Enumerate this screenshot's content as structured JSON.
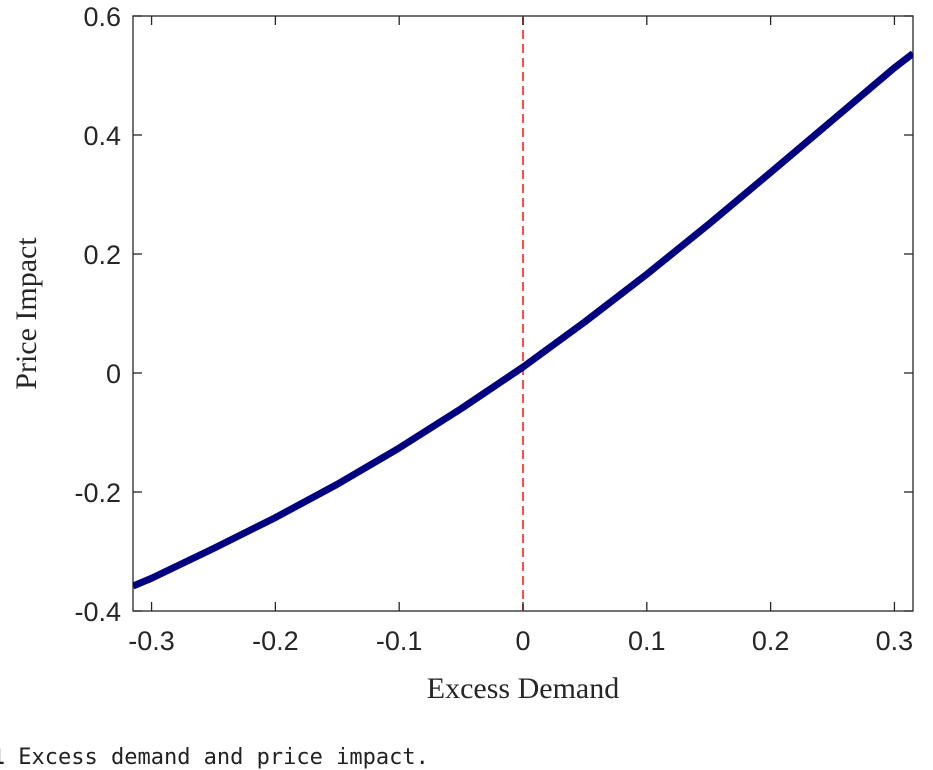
{
  "chart_data": {
    "type": "line",
    "xlabel": "Excess Demand",
    "ylabel": "Price Impact",
    "xlim": [
      -0.315,
      0.315
    ],
    "ylim": [
      -0.4,
      0.6
    ],
    "xticks": [
      -0.3,
      -0.2,
      -0.1,
      0,
      0.1,
      0.2,
      0.3
    ],
    "xtick_labels": [
      "-0.3",
      "-0.2",
      "-0.1",
      "0",
      "0.1",
      "0.2",
      "0.3"
    ],
    "yticks": [
      -0.4,
      -0.2,
      0,
      0.2,
      0.4,
      0.6
    ],
    "ytick_labels": [
      "-0.4",
      "-0.2",
      "0",
      "0.2",
      "0.4",
      "0.6"
    ],
    "grid": false,
    "series": [
      {
        "color": "#000080",
        "x": [
          -0.315,
          -0.3,
          -0.25,
          -0.2,
          -0.15,
          -0.1,
          -0.05,
          0,
          0.05,
          0.1,
          0.15,
          0.2,
          0.25,
          0.3,
          0.315
        ],
        "y": [
          -0.358,
          -0.345,
          -0.295,
          -0.243,
          -0.187,
          -0.126,
          -0.06,
          0.01,
          0.086,
          0.166,
          0.25,
          0.337,
          0.425,
          0.513,
          0.537
        ]
      }
    ],
    "reference_lines": [
      {
        "orientation": "vertical",
        "x": 0,
        "color": "#ff4d4d",
        "style": "dashed"
      }
    ]
  },
  "caption": {
    "number": "1",
    "text": "Excess demand and price impact."
  }
}
